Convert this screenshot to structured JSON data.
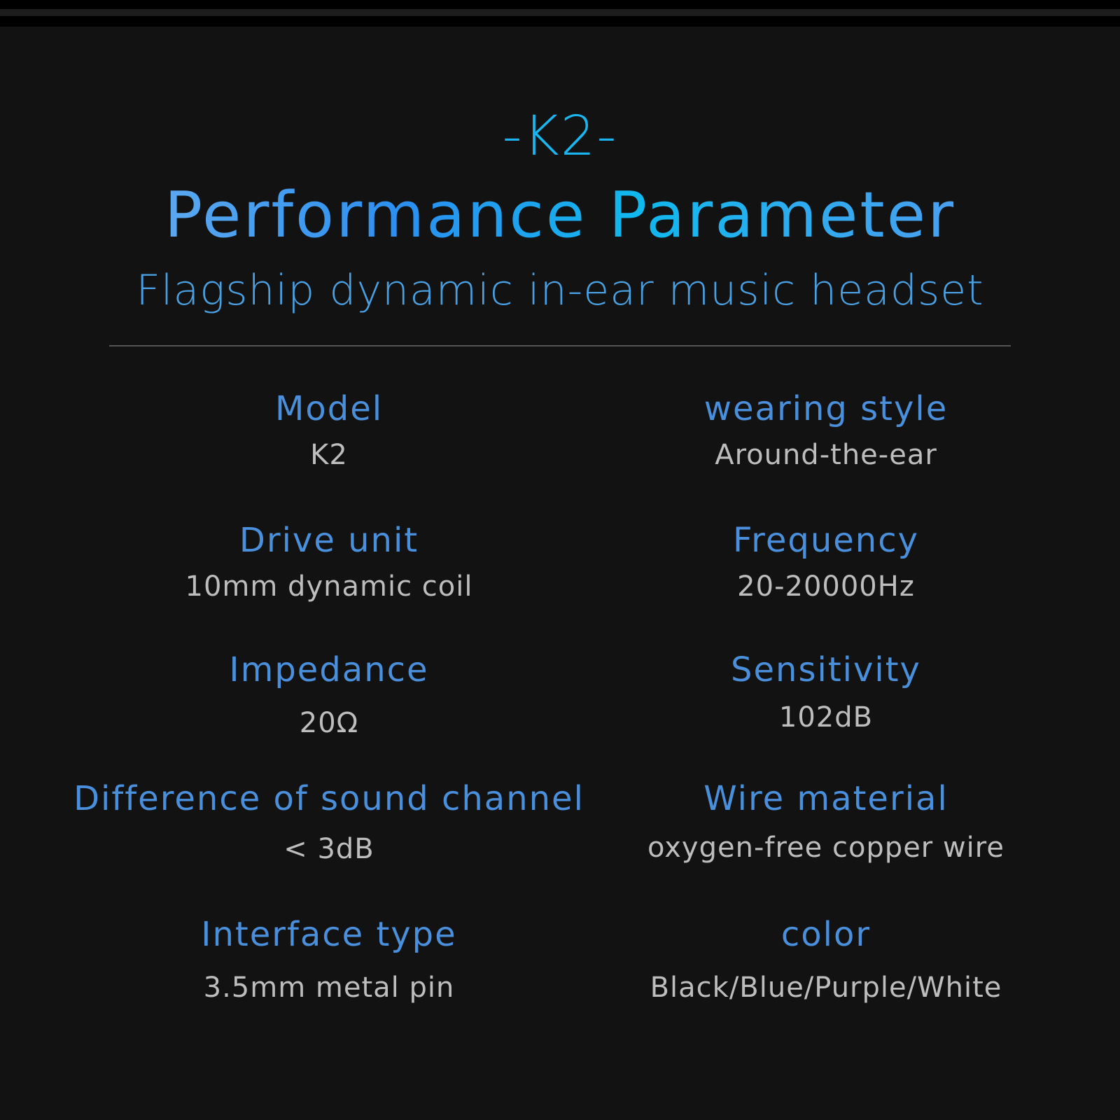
{
  "header": {
    "model_tag": "-K2-",
    "title": "Performance Parameter",
    "subtitle": "Flagship dynamic in-ear music headset"
  },
  "colors": {
    "background": "#121212",
    "label": "#4a8fdb",
    "value": "#bdbdbd",
    "title_accent": "#1ab4ee"
  },
  "specs": [
    {
      "label": "Model",
      "value": "K2"
    },
    {
      "label": "wearing style",
      "value": "Around-the-ear"
    },
    {
      "label": "Drive unit",
      "value": "10mm dynamic coil"
    },
    {
      "label": "Frequency",
      "value": "20-20000Hz"
    },
    {
      "label": "Impedance",
      "value": "20Ω"
    },
    {
      "label": "Sensitivity",
      "value": "102dB"
    },
    {
      "label": "Difference of sound channel",
      "value": "< 3dB"
    },
    {
      "label": "Wire material",
      "value": "oxygen-free copper wire"
    },
    {
      "label": "Interface type",
      "value": "3.5mm metal pin"
    },
    {
      "label": "color",
      "value": "Black/Blue/Purple/White"
    }
  ]
}
